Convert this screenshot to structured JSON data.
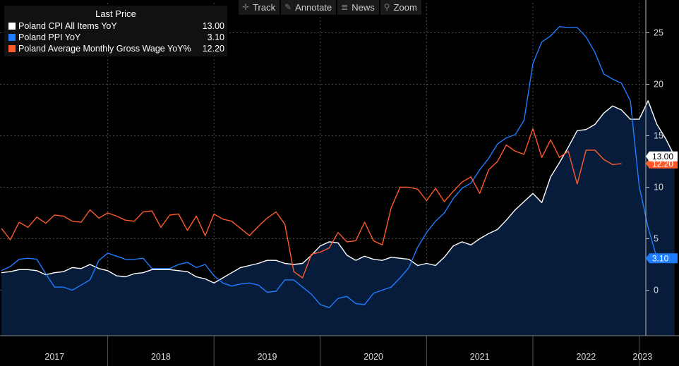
{
  "toolbar": [
    {
      "label": "Track",
      "icon": "crosshair-icon",
      "glyph": "✛"
    },
    {
      "label": "Annotate",
      "icon": "pencil-icon",
      "glyph": "✎"
    },
    {
      "label": "News",
      "icon": "news-icon",
      "glyph": "≣"
    },
    {
      "label": "Zoom",
      "icon": "magnifier-icon",
      "glyph": "⚲"
    }
  ],
  "legend": {
    "title": "Last Price",
    "items": [
      {
        "name": "Poland CPI All Items YoY",
        "value": "13.00",
        "color": "#ffffff"
      },
      {
        "name": "Poland PPI YoY",
        "value": "3.10",
        "color": "#1f7cff"
      },
      {
        "name": "Poland Average Monthly Gross Wage YoY%",
        "value": "12.20",
        "color": "#ff5a2c"
      }
    ]
  },
  "chart_data": {
    "type": "line",
    "x_start": "2017-01",
    "x_labels": [
      "2017",
      "2018",
      "2019",
      "2020",
      "2021",
      "2022",
      "2023"
    ],
    "y_ticks": [
      0,
      5,
      10,
      15,
      20,
      25
    ],
    "ylim": [
      -4.2,
      27.7
    ],
    "grid": true,
    "series": [
      {
        "name": "Poland CPI All Items YoY",
        "color": "#ffffff",
        "filled": true,
        "fill": "#061c3a",
        "last_label": "13.00",
        "values": [
          1.7,
          1.8,
          2.0,
          2.0,
          1.9,
          1.5,
          1.7,
          1.8,
          2.2,
          2.1,
          2.5,
          2.1,
          1.9,
          1.4,
          1.3,
          1.6,
          1.7,
          2.0,
          2.0,
          2.0,
          1.9,
          1.8,
          1.3,
          1.1,
          0.7,
          1.2,
          1.7,
          2.2,
          2.4,
          2.6,
          2.9,
          2.9,
          2.6,
          2.5,
          2.6,
          3.4,
          4.3,
          4.7,
          4.6,
          3.4,
          2.9,
          3.3,
          3.0,
          2.9,
          3.2,
          3.1,
          3.0,
          2.4,
          2.6,
          2.4,
          3.2,
          4.3,
          4.7,
          4.4,
          5.0,
          5.5,
          5.9,
          6.8,
          7.8,
          8.6,
          9.4,
          8.5,
          11.0,
          12.4,
          13.9,
          15.5,
          15.6,
          16.1,
          17.2,
          17.9,
          17.5,
          16.6,
          16.6,
          18.4,
          16.1,
          14.7,
          13.0
        ]
      },
      {
        "name": "Poland PPI YoY",
        "color": "#1f7cff",
        "filled": false,
        "last_label": "3.10",
        "values": [
          1.9,
          2.3,
          3.0,
          3.1,
          3.0,
          1.6,
          0.3,
          0.3,
          0.0,
          0.5,
          1.0,
          2.9,
          3.6,
          3.3,
          3.0,
          3.0,
          3.1,
          2.1,
          2.1,
          2.1,
          2.5,
          2.7,
          2.2,
          2.5,
          1.4,
          0.7,
          0.4,
          0.6,
          0.7,
          0.5,
          -0.2,
          -0.1,
          1.0,
          1.0,
          0.3,
          -0.4,
          -1.4,
          -1.7,
          -0.8,
          -0.6,
          -1.3,
          -1.4,
          -0.3,
          0.0,
          0.3,
          1.2,
          2.2,
          4.2,
          5.6,
          6.7,
          7.5,
          8.9,
          9.9,
          10.4,
          11.7,
          12.8,
          14.2,
          14.8,
          15.1,
          16.5,
          22.0,
          24.1,
          24.7,
          25.6,
          25.5,
          25.5,
          24.6,
          23.1,
          21.0,
          20.5,
          20.1,
          18.4,
          10.1,
          6.1,
          3.1
        ]
      },
      {
        "name": "Poland Average Monthly Gross Wage YoY%",
        "color": "#ff5a2c",
        "filled": false,
        "last_label": "12.20",
        "values": [
          6.0,
          4.9,
          6.6,
          6.1,
          7.1,
          6.5,
          7.3,
          7.2,
          6.7,
          6.6,
          7.8,
          7.0,
          7.5,
          7.2,
          6.8,
          6.7,
          7.6,
          7.7,
          6.1,
          7.3,
          7.4,
          5.8,
          7.2,
          5.3,
          7.4,
          6.9,
          6.7,
          6.0,
          5.3,
          6.2,
          7.0,
          7.6,
          6.4,
          1.8,
          1.2,
          3.5,
          3.7,
          4.1,
          5.6,
          4.7,
          4.8,
          6.6,
          4.8,
          4.4,
          8.0,
          10.0,
          10.0,
          9.8,
          8.7,
          9.9,
          8.6,
          9.6,
          10.5,
          11.0,
          9.4,
          11.7,
          12.5,
          14.1,
          13.5,
          13.2,
          15.7,
          12.9,
          14.6,
          12.9,
          13.5,
          10.3,
          13.6,
          13.6,
          12.7,
          12.2,
          12.3
        ]
      }
    ]
  }
}
